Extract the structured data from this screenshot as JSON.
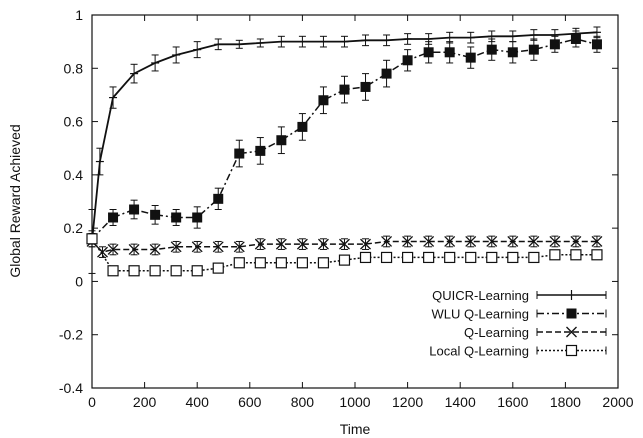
{
  "chart_data": {
    "type": "line",
    "title": "",
    "xlabel": "Time",
    "ylabel": "Global Reward Achieved",
    "xlim": [
      0,
      2000
    ],
    "ylim": [
      -0.4,
      1
    ],
    "xticks": [
      "0",
      "200",
      "400",
      "600",
      "800",
      "1000",
      "1200",
      "1400",
      "1600",
      "1800",
      "2000"
    ],
    "yticks": [
      "-0.4",
      "-0.2",
      "0",
      "0.2",
      "0.4",
      "0.6",
      "0.8",
      "1"
    ],
    "grid": false,
    "legend_position": "bottom-right",
    "series": [
      {
        "name": "QUICR-Learning",
        "marker": "plus",
        "line": "solid",
        "x": [
          0,
          30,
          80,
          160,
          240,
          320,
          400,
          480,
          560,
          640,
          720,
          800,
          880,
          960,
          1040,
          1120,
          1200,
          1280,
          1360,
          1440,
          1520,
          1600,
          1680,
          1760,
          1840,
          1920
        ],
        "y": [
          0.15,
          0.45,
          0.69,
          0.78,
          0.82,
          0.85,
          0.87,
          0.89,
          0.89,
          0.895,
          0.9,
          0.9,
          0.9,
          0.9,
          0.905,
          0.905,
          0.91,
          0.91,
          0.915,
          0.915,
          0.92,
          0.92,
          0.925,
          0.925,
          0.93,
          0.935
        ],
        "err": [
          0.12,
          0.05,
          0.04,
          0.035,
          0.03,
          0.03,
          0.03,
          0.02,
          0.015,
          0.015,
          0.02,
          0.02,
          0.02,
          0.02,
          0.02,
          0.02,
          0.02,
          0.02,
          0.02,
          0.02,
          0.02,
          0.02,
          0.02,
          0.02,
          0.02,
          0.02
        ]
      },
      {
        "name": "WLU Q-Learning",
        "marker": "filled-square",
        "line": "dash-dot",
        "x": [
          0,
          80,
          160,
          240,
          320,
          400,
          480,
          560,
          640,
          720,
          800,
          880,
          960,
          1040,
          1120,
          1200,
          1280,
          1360,
          1440,
          1520,
          1600,
          1680,
          1760,
          1840,
          1920
        ],
        "y": [
          0.16,
          0.24,
          0.27,
          0.25,
          0.24,
          0.24,
          0.31,
          0.48,
          0.49,
          0.53,
          0.58,
          0.68,
          0.72,
          0.73,
          0.78,
          0.83,
          0.86,
          0.86,
          0.84,
          0.87,
          0.86,
          0.87,
          0.89,
          0.91,
          0.89
        ],
        "err": [
          0.03,
          0.03,
          0.035,
          0.035,
          0.03,
          0.04,
          0.04,
          0.05,
          0.05,
          0.05,
          0.05,
          0.05,
          0.05,
          0.05,
          0.05,
          0.04,
          0.04,
          0.04,
          0.04,
          0.04,
          0.04,
          0.04,
          0.03,
          0.03,
          0.03
        ]
      },
      {
        "name": "Q-Learning",
        "marker": "x",
        "line": "dashed",
        "x": [
          0,
          40,
          80,
          160,
          240,
          320,
          400,
          480,
          560,
          640,
          720,
          800,
          880,
          960,
          1040,
          1120,
          1200,
          1280,
          1360,
          1440,
          1520,
          1600,
          1680,
          1760,
          1840,
          1920
        ],
        "y": [
          0.15,
          0.11,
          0.12,
          0.12,
          0.12,
          0.13,
          0.13,
          0.13,
          0.13,
          0.14,
          0.14,
          0.14,
          0.14,
          0.14,
          0.14,
          0.15,
          0.15,
          0.15,
          0.15,
          0.15,
          0.15,
          0.15,
          0.15,
          0.15,
          0.15,
          0.15
        ],
        "err": [
          0.02,
          0.02,
          0.02,
          0.02,
          0.02,
          0.02,
          0.02,
          0.02,
          0.02,
          0.02,
          0.02,
          0.02,
          0.02,
          0.02,
          0.02,
          0.02,
          0.02,
          0.02,
          0.02,
          0.02,
          0.02,
          0.02,
          0.02,
          0.02,
          0.02,
          0.02
        ]
      },
      {
        "name": "Local Q-Learning",
        "marker": "open-square",
        "line": "dotted",
        "x": [
          0,
          80,
          160,
          240,
          320,
          400,
          480,
          560,
          640,
          720,
          800,
          880,
          960,
          1040,
          1120,
          1200,
          1280,
          1360,
          1440,
          1520,
          1600,
          1680,
          1760,
          1840,
          1920
        ],
        "y": [
          0.16,
          0.04,
          0.04,
          0.04,
          0.04,
          0.04,
          0.05,
          0.07,
          0.07,
          0.07,
          0.07,
          0.07,
          0.08,
          0.09,
          0.09,
          0.09,
          0.09,
          0.09,
          0.09,
          0.09,
          0.09,
          0.09,
          0.1,
          0.1,
          0.1
        ],
        "err": [
          0.02,
          0.015,
          0.015,
          0.015,
          0.015,
          0.015,
          0.015,
          0.015,
          0.015,
          0.015,
          0.015,
          0.015,
          0.015,
          0.015,
          0.015,
          0.015,
          0.015,
          0.015,
          0.015,
          0.015,
          0.015,
          0.015,
          0.015,
          0.015,
          0.015
        ]
      }
    ]
  }
}
